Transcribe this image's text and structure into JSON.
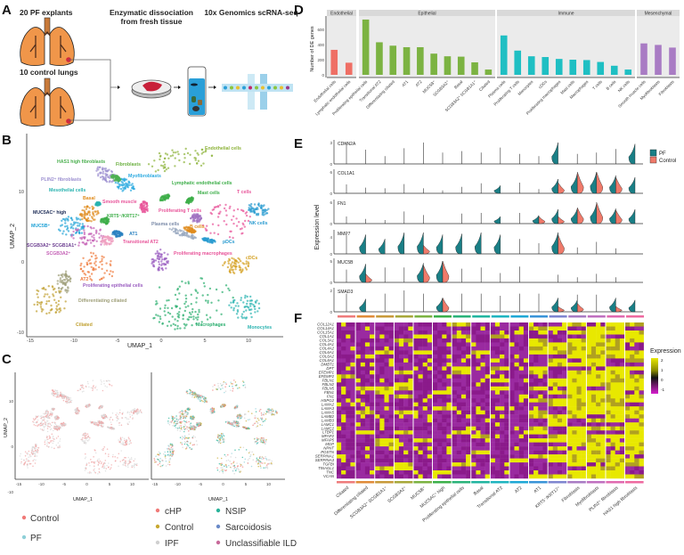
{
  "panels": {
    "a": "A",
    "b": "B",
    "c": "C",
    "d": "D",
    "e": "E",
    "f": "F"
  },
  "panel_a": {
    "pf_label": "20 PF explants",
    "control_label": "10 control lungs",
    "step1_line1": "Enzymatic dissociation",
    "step1_line2": "from fresh tissue",
    "step2": "10x Genomics scRNA-seq",
    "colors": {
      "lung": "#f0964a",
      "lesion": "#d0283c",
      "media": "#2a9fd8"
    }
  },
  "chart_data": [
    {
      "panel": "D",
      "type": "bar",
      "ylabel": "Number of DE genes",
      "ylim": [
        0,
        760
      ],
      "yticks": [
        0,
        200,
        400,
        600
      ],
      "grid": false,
      "facets": [
        {
          "name": "Endothelial",
          "color": "#ef6f65",
          "categories": [
            "Endothelial cells",
            "Lymphatic endothelial cells"
          ],
          "values": [
            330,
            160
          ]
        },
        {
          "name": "Epithelial",
          "color": "#7cb342",
          "categories": [
            "Proliferating epithelial cells",
            "Transitional AT2",
            "Differentiating ciliated",
            "AT1",
            "AT2",
            "MUC5B⁺",
            "SCGB3A2⁺",
            "Basal",
            "SCGB3A2⁺ SCGB1A1⁺",
            "Ciliated"
          ],
          "values": [
            730,
            430,
            385,
            365,
            365,
            280,
            245,
            240,
            165,
            70
          ]
        },
        {
          "name": "Immune",
          "color": "#1fbfc3",
          "categories": [
            "Plasma cells",
            "Proliferating T cells",
            "Monocytes",
            "cDCs",
            "Proliferating macrophages",
            "Mast cells",
            "Macrophages",
            "T cells",
            "B cells",
            "NK cells"
          ],
          "values": [
            520,
            320,
            245,
            235,
            210,
            200,
            195,
            170,
            120,
            70
          ]
        },
        {
          "name": "Mesenchymal",
          "color": "#a97cc4",
          "categories": [
            "Smooth muscle cells",
            "Myofibroblasts",
            "Fibroblasts"
          ],
          "values": [
            415,
            395,
            360
          ]
        }
      ]
    },
    {
      "panel": "B",
      "type": "scatter",
      "xlabel": "UMAP_1",
      "ylabel": "UMAP_2",
      "xticks": [
        -15,
        -10,
        -5,
        0,
        5,
        10
      ],
      "yticks": [
        -10,
        0,
        10
      ],
      "cluster_labels": [
        {
          "text": "Endothelial cells",
          "color": "#8db33a"
        },
        {
          "text": "HAS1 high fibroblasts",
          "color": "#4cb050"
        },
        {
          "text": "Fibroblasts",
          "color": "#6bb040"
        },
        {
          "text": "Myofibroblasts",
          "color": "#29a9e0"
        },
        {
          "text": "PLIN2⁺ fibroblasts",
          "color": "#9b8fd0"
        },
        {
          "text": "Mesothelial cells",
          "color": "#2ab3b0"
        },
        {
          "text": "Lymphatic endothelial cells",
          "color": "#3dae49"
        },
        {
          "text": "Smooth muscle",
          "color": "#e8559a"
        },
        {
          "text": "Mast cells",
          "color": "#3dae49"
        },
        {
          "text": "T cells",
          "color": "#e8559a"
        },
        {
          "text": "MUC5AC⁺ high",
          "color": "#1b2a55"
        },
        {
          "text": "KRT5⁻/KRT17⁺",
          "color": "#3dae49"
        },
        {
          "text": "Proliferating T cells",
          "color": "#e8559a"
        },
        {
          "text": "Basal",
          "color": "#e08c1e"
        },
        {
          "text": "NK cells",
          "color": "#2a9bd0"
        },
        {
          "text": "MUC5B⁺",
          "color": "#1fa2d6"
        },
        {
          "text": "Plasma cells",
          "color": "#7a8aa8"
        },
        {
          "text": "B cells",
          "color": "#e08c1e"
        },
        {
          "text": "AT1",
          "color": "#2a80c0"
        },
        {
          "text": "SCGB3A2⁺ SCGB1A1⁺",
          "color": "#6a3b8f"
        },
        {
          "text": "Transitional AT2",
          "color": "#e8559a"
        },
        {
          "text": "pDCs",
          "color": "#2a9bd0"
        },
        {
          "text": "SCGB3A2⁺",
          "color": "#c45fb5"
        },
        {
          "text": "Proliferating macrophages",
          "color": "#e8559a"
        },
        {
          "text": "cDCs",
          "color": "#d4a020"
        },
        {
          "text": "AT2",
          "color": "#f07a3c"
        },
        {
          "text": "Proliferating epithelial cells",
          "color": "#9a5dc0"
        },
        {
          "text": "Differentiating ciliated",
          "color": "#a0a07a"
        },
        {
          "text": "Ciliated",
          "color": "#c0a030"
        },
        {
          "text": "Macrophages",
          "color": "#2aae6e"
        },
        {
          "text": "Monocytes",
          "color": "#2ab3b0"
        }
      ]
    },
    {
      "panel": "C",
      "type": "scatter",
      "xlabel": "UMAP_1",
      "ylabel": "UMAP_2",
      "xticks": [
        -15,
        -10,
        -5,
        0,
        5,
        10
      ],
      "yticks": [
        -10,
        0,
        10
      ],
      "legend_left": [
        {
          "name": "Control",
          "color": "#f07a78"
        },
        {
          "name": "PF",
          "color": "#8fd0d8"
        }
      ],
      "legend_right": [
        {
          "name": "cHP",
          "color": "#f07a78"
        },
        {
          "name": "NSIP",
          "color": "#2ab39a"
        },
        {
          "name": "Control",
          "color": "#c8a830"
        },
        {
          "name": "Sarcoidosis",
          "color": "#6a8ac8"
        },
        {
          "name": "IPF",
          "color": "#d0d0d0"
        },
        {
          "name": "Unclassifiable ILD",
          "color": "#c86a9a"
        }
      ]
    },
    {
      "panel": "E",
      "type": "violin",
      "ylabel": "Expression level",
      "legend": [
        {
          "name": "PF",
          "color": "#1a7f86"
        },
        {
          "name": "Control",
          "color": "#f07a6a"
        }
      ],
      "genes": [
        {
          "name": "CDKN2A",
          "ymax": 3,
          "yticks": [
            0,
            3
          ],
          "whisker": [
            3,
            2,
            1.1,
            2.2,
            3,
            1.6,
            1.8,
            1.6,
            2.3,
            1.4,
            1.1,
            0,
            1.4,
            1.6,
            2.1,
            0
          ],
          "pf": [
            0,
            0,
            0,
            0,
            0,
            0,
            0,
            0,
            0,
            0,
            0,
            3,
            0,
            0,
            0,
            2.8
          ],
          "control": [
            0,
            0,
            0,
            0,
            0,
            0,
            0,
            0,
            0,
            0,
            0,
            0,
            0,
            0,
            0,
            0
          ]
        },
        {
          "name": "COL1A1",
          "ymax": 6,
          "yticks": [
            0,
            6
          ],
          "whisker": [
            2.5,
            1.6,
            1.4,
            2.6,
            1.4,
            0.8,
            1.8,
            2.8,
            0,
            3,
            1.2,
            0,
            0,
            0,
            0,
            0
          ],
          "pf": [
            0,
            0,
            0,
            0,
            0,
            0,
            0,
            0,
            2.2,
            0,
            0,
            4,
            5.5,
            6,
            5,
            4.5
          ],
          "control": [
            0,
            0,
            0,
            0,
            0,
            0,
            0,
            0,
            0,
            0,
            0,
            3,
            6,
            6,
            4.5,
            0
          ]
        },
        {
          "name": "FN1",
          "ymax": 6,
          "yticks": [
            0,
            6
          ],
          "whisker": [
            2,
            1.3,
            1,
            3.4,
            2.4,
            0,
            2.8,
            3,
            0,
            3,
            0,
            0,
            0,
            0,
            0,
            0
          ],
          "pf": [
            0,
            0,
            0,
            0,
            0,
            0,
            0,
            0,
            2,
            0,
            2.3,
            4,
            4.2,
            5.5,
            4.2,
            4
          ],
          "control": [
            0,
            0,
            0,
            0,
            0,
            0,
            0,
            0,
            0,
            0,
            2,
            2,
            4.5,
            6,
            3.8,
            0
          ]
        },
        {
          "name": "MMP7",
          "ymax": 5,
          "yticks": [
            0,
            4
          ],
          "whisker": [
            4.5,
            0,
            0,
            0,
            0,
            0,
            0,
            0,
            0,
            3.5,
            2.5,
            0,
            1.5,
            2.8,
            1.3,
            0
          ],
          "pf": [
            0,
            4.5,
            3.5,
            5,
            5,
            4.5,
            4.7,
            5,
            4.5,
            0,
            0,
            5,
            0,
            0,
            0,
            0
          ],
          "control": [
            0,
            0,
            0,
            0,
            2,
            0,
            0,
            0,
            0,
            0,
            0,
            4.5,
            0,
            0,
            0,
            0
          ]
        },
        {
          "name": "MUC5B",
          "ymax": 5,
          "yticks": [
            0,
            5
          ],
          "whisker": [
            3,
            0,
            3.5,
            3.5,
            0,
            0,
            3.2,
            3.5,
            2.2,
            3.7,
            0,
            1.8,
            1.2,
            2,
            1.2,
            0
          ],
          "pf": [
            0,
            4.3,
            0,
            0,
            4.5,
            5,
            0,
            0,
            0,
            0,
            0,
            0,
            0,
            0,
            0,
            0
          ],
          "control": [
            0,
            2,
            0,
            0,
            4,
            5,
            0,
            0,
            0,
            0,
            0,
            0,
            0,
            0,
            0,
            0
          ]
        },
        {
          "name": "SMAD3",
          "ymax": 2,
          "yticks": [
            0,
            2
          ],
          "whisker": [
            1.7,
            0,
            1.7,
            2,
            1.7,
            0,
            1.7,
            1.7,
            1.5,
            1.7,
            1.7,
            0,
            1.6,
            1.6,
            0,
            0
          ],
          "pf": [
            0,
            1.2,
            0,
            0,
            0,
            1.3,
            0,
            0,
            0,
            0,
            0,
            1.3,
            1.1,
            0,
            1.3,
            1.1
          ],
          "control": [
            0,
            0,
            0,
            0,
            0,
            1.3,
            0,
            0,
            0,
            0,
            0,
            0.5,
            0.8,
            0,
            0.5,
            0
          ]
        }
      ]
    },
    {
      "panel": "F",
      "type": "heatmap",
      "legend_title": "Expression",
      "legend_ticks": [
        2,
        1,
        0,
        -1
      ],
      "colorscale": [
        "#d81fcf",
        "#8b1a8b",
        "#111111",
        "#e8e800"
      ],
      "genes": [
        "COL12A1",
        "COL14A1",
        "COL15A1",
        "COL1A1",
        "COL3A1",
        "COL4A1",
        "COL4A2",
        "COL6A1",
        "COL6A2",
        "COL8A1",
        "DMBT1",
        "DPT",
        "EFEMP1",
        "EFEMP2",
        "FBLN1",
        "FBLN2",
        "FBLN5",
        "FBN1",
        "FN1",
        "HSPG2",
        "LAMA2",
        "LAMA3",
        "LAMA5",
        "LAMB2",
        "LAMB3",
        "LAMC1",
        "LAMC2",
        "LTBP1",
        "MFAP2",
        "MFAP5",
        "MGP",
        "NPNT",
        "POSTN",
        "SERPINA1",
        "SERPINA3",
        "TGFBI",
        "TINAGL1",
        "TNC",
        "VCAN"
      ],
      "clusters": [
        {
          "name": "Ciliated",
          "color": "#ef7c7c"
        },
        {
          "name": "Differentiating ciliated",
          "color": "#e08c3a"
        },
        {
          "name": "SCGB3A2⁺ SCGB1A1⁺",
          "color": "#c89a3a"
        },
        {
          "name": "SCGB3A2⁺",
          "color": "#a8a83a"
        },
        {
          "name": "MUC5B⁺",
          "color": "#7cb342"
        },
        {
          "name": "MUC5AC⁺ high",
          "color": "#3cb04a"
        },
        {
          "name": "Proliferating epithelial cells",
          "color": "#2ab37a"
        },
        {
          "name": "Basal",
          "color": "#22b5a0"
        },
        {
          "name": "Transitional AT2",
          "color": "#1fb5c0"
        },
        {
          "name": "AT2",
          "color": "#1fa8d6"
        },
        {
          "name": "AT1",
          "color": "#3a94d8"
        },
        {
          "name": "KRT5⁻/KRT17⁺",
          "color": "#7f86d0"
        },
        {
          "name": "Fibroblasts",
          "color": "#a97cc4"
        },
        {
          "name": "Myofibroblasts",
          "color": "#c070c0"
        },
        {
          "name": "PLIN2⁺ fibroblasts",
          "color": "#e06ab0"
        },
        {
          "name": "HAS1 high fibroblasts",
          "color": "#ee6aa0"
        }
      ]
    }
  ]
}
